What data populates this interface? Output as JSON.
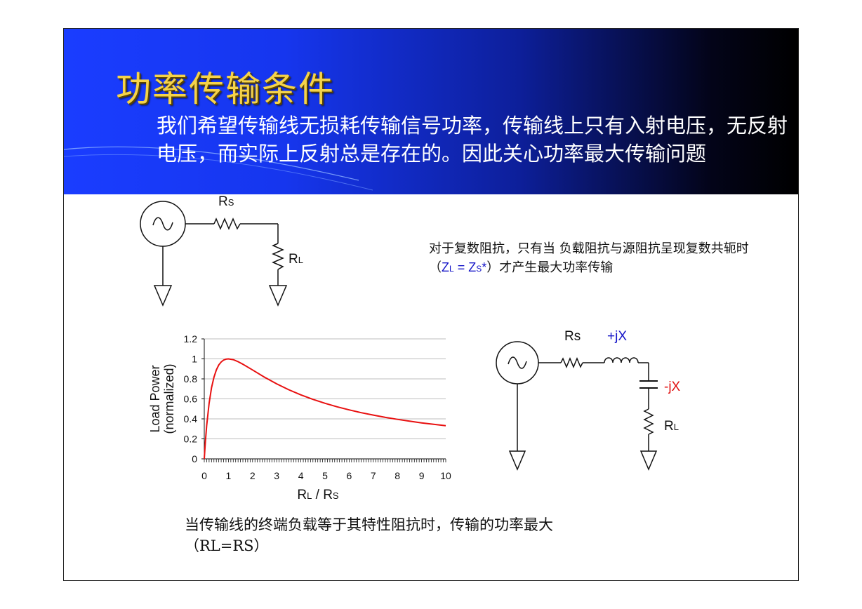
{
  "slide": {
    "title": "功率传输条件",
    "intro": "我们希望传输线无损耗传输信号功率，传输线上只有入射电压，无反射电压，而实际上反射总是存在的。因此关心功率最大传输问题"
  },
  "circuit_simple": {
    "rs_main": "R",
    "rs_sub": "S",
    "rl_main": "R",
    "rl_sub": "L"
  },
  "complex_note": {
    "text_a": "对于复数阻抗，只有当 负载阻抗与源阻抗呈现复数共轭时（",
    "z_l_main": "Z",
    "z_l_sub": "L",
    "equals": " = ",
    "z_s_main": "Z",
    "z_s_sub": "S",
    "star": "*",
    "text_b": "）才产生最大功率传输"
  },
  "circuit_complex": {
    "rs_label": "Rs",
    "plus_jx": "+jX",
    "minus_jx": "-jX",
    "rl_main": "R",
    "rl_sub": "L",
    "colors": {
      "plus_jx": "#1515c8",
      "minus_jx": "#e01010"
    }
  },
  "chart_data": {
    "type": "line",
    "title": "",
    "ylabel_line1": "Load Power",
    "ylabel_line2": "(normalized)",
    "xlabel_main_1": "R",
    "xlabel_sub_1": "L",
    "xlabel_mid": " / R",
    "xlabel_sub_2": "S",
    "xlim": [
      0,
      10
    ],
    "ylim": [
      0,
      1.2
    ],
    "x_ticks": [
      "0",
      "1",
      "2",
      "3",
      "4",
      "5",
      "6",
      "7",
      "8",
      "9",
      "10"
    ],
    "y_ticks": [
      "0",
      "0.2",
      "0.4",
      "0.6",
      "0.8",
      "1",
      "1.2"
    ],
    "grid": true,
    "series": [
      {
        "color": "#e81010",
        "x": [
          0.02,
          0.05,
          0.1,
          0.2,
          0.3,
          0.4,
          0.5,
          0.6,
          0.7,
          0.8,
          0.9,
          1.0,
          1.2,
          1.4,
          1.6,
          1.8,
          2.0,
          2.5,
          3.0,
          3.5,
          4.0,
          4.5,
          5.0,
          5.5,
          6.0,
          6.5,
          7.0,
          7.5,
          8.0,
          8.5,
          9.0,
          9.5,
          10.0
        ],
        "values": [
          0.078,
          0.181,
          0.331,
          0.556,
          0.71,
          0.816,
          0.889,
          0.938,
          0.969,
          0.988,
          0.997,
          1.0,
          0.992,
          0.972,
          0.947,
          0.918,
          0.889,
          0.816,
          0.75,
          0.691,
          0.64,
          0.595,
          0.556,
          0.521,
          0.49,
          0.462,
          0.438,
          0.415,
          0.395,
          0.377,
          0.36,
          0.345,
          0.331
        ]
      }
    ]
  },
  "bottom_note": {
    "text": "当传输线的终端负载等于其特性阻抗时，传输的功率最大（RL=RS）"
  }
}
